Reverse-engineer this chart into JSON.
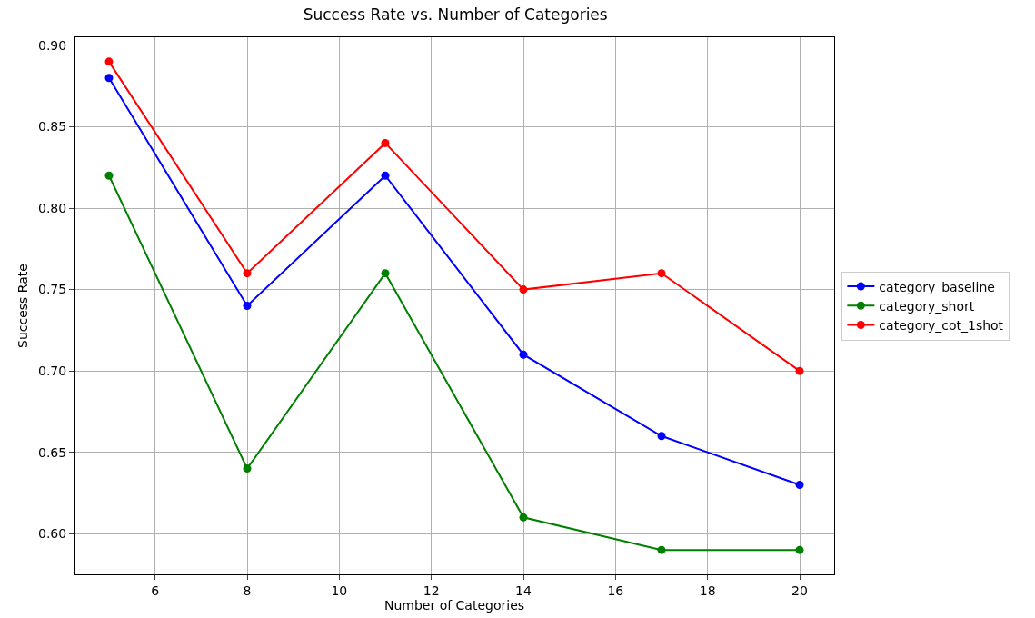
{
  "chart_data": {
    "type": "line",
    "title": "Success Rate vs. Number of Categories",
    "xlabel": "Number of Categories",
    "ylabel": "Success Rate",
    "x": [
      5,
      8,
      11,
      14,
      17,
      20
    ],
    "series": [
      {
        "name": "category_baseline",
        "color": "#0000ff",
        "values": [
          0.88,
          0.74,
          0.82,
          0.71,
          0.66,
          0.63
        ]
      },
      {
        "name": "category_short",
        "color": "#008000",
        "values": [
          0.82,
          0.64,
          0.76,
          0.61,
          0.59,
          0.59
        ]
      },
      {
        "name": "category_cot_1shot",
        "color": "#ff0000",
        "values": [
          0.89,
          0.76,
          0.84,
          0.75,
          0.76,
          0.7
        ]
      }
    ],
    "xlim": [
      4.25,
      20.75
    ],
    "xticks": [
      6,
      8,
      10,
      12,
      14,
      16,
      18,
      20
    ],
    "ylim": [
      0.575,
      0.905
    ],
    "yticks": [
      {
        "value": 0.6,
        "label": "0.60"
      },
      0.65,
      {
        "value": 0.7,
        "label": "0.70"
      },
      0.75,
      {
        "value": 0.8,
        "label": "0.80"
      },
      0.85,
      {
        "value": 0.9,
        "label": "0.90"
      }
    ],
    "grid": true,
    "legend": "right",
    "marker": "circle",
    "line_style": "solid"
  }
}
